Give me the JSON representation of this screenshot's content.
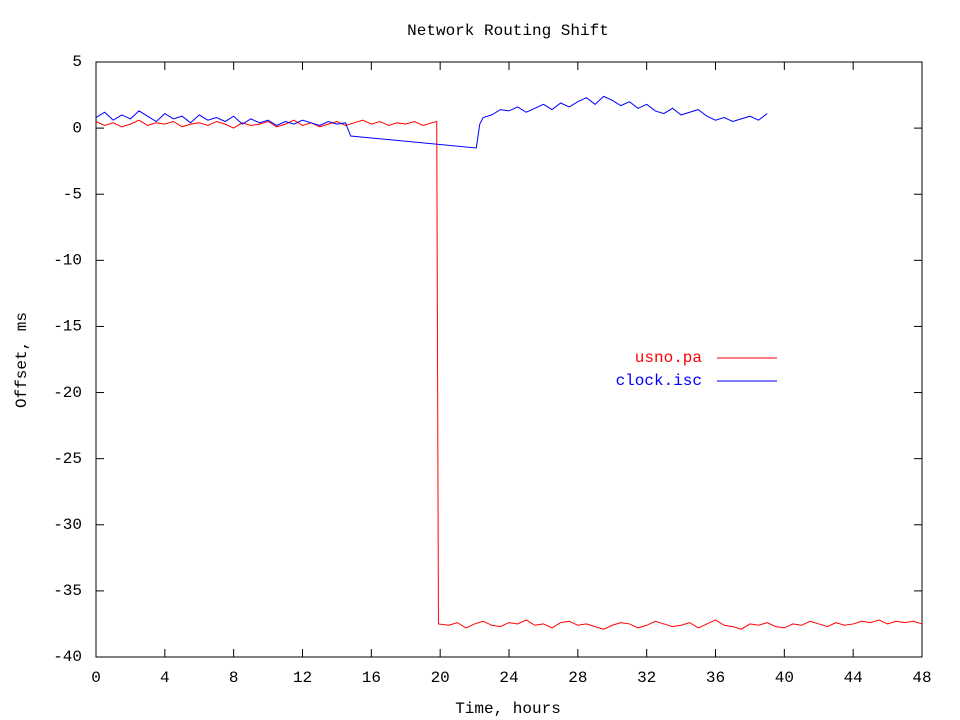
{
  "chart_data": {
    "type": "line",
    "title": "Network Routing Shift",
    "x_label": "Time, hours",
    "y_label": "Offset, ms",
    "xlim": [
      0,
      48
    ],
    "xticks": [
      0,
      4,
      8,
      12,
      16,
      20,
      24,
      28,
      32,
      36,
      40,
      44,
      48
    ],
    "ylim": [
      -40,
      5
    ],
    "yticks": [
      5,
      0,
      -5,
      -10,
      -15,
      -20,
      -25,
      -30,
      -35,
      -40
    ],
    "legend": "right",
    "grid": false,
    "series": [
      {
        "name": "usno.pa",
        "color": "#ff0000",
        "x": [
          0,
          0.5,
          1,
          1.5,
          2,
          2.5,
          3,
          3.5,
          4,
          4.5,
          5,
          5.5,
          6,
          6.5,
          7,
          7.5,
          8,
          8.5,
          9,
          9.5,
          10,
          10.5,
          11,
          11.5,
          12,
          12.5,
          13,
          13.5,
          14,
          14.5,
          15,
          15.5,
          16,
          16.5,
          17,
          17.5,
          18,
          18.5,
          19,
          19.5,
          19.8,
          19.9,
          20.5,
          21,
          21.5,
          22,
          22.5,
          23,
          23.5,
          24,
          24.5,
          25,
          25.5,
          26,
          26.5,
          27,
          27.5,
          28,
          28.5,
          29,
          29.5,
          30,
          30.5,
          31,
          31.5,
          32,
          32.5,
          33,
          33.5,
          34,
          34.5,
          35,
          35.5,
          36,
          36.5,
          37,
          37.5,
          38,
          38.5,
          39,
          39.5,
          40,
          40.5,
          41,
          41.5,
          42,
          42.5,
          43,
          43.5,
          44,
          44.5,
          45,
          45.5,
          46,
          46.5,
          47,
          47.5,
          48
        ],
        "values": [
          0.5,
          0.2,
          0.4,
          0.1,
          0.3,
          0.6,
          0.2,
          0.4,
          0.3,
          0.5,
          0.1,
          0.3,
          0.4,
          0.2,
          0.5,
          0.3,
          0.0,
          0.4,
          0.2,
          0.3,
          0.5,
          0.1,
          0.3,
          0.6,
          0.2,
          0.4,
          0.1,
          0.3,
          0.5,
          0.2,
          0.4,
          0.6,
          0.3,
          0.5,
          0.2,
          0.4,
          0.3,
          0.5,
          0.2,
          0.4,
          0.5,
          -37.5,
          -37.6,
          -37.4,
          -37.8,
          -37.5,
          -37.3,
          -37.6,
          -37.7,
          -37.4,
          -37.5,
          -37.2,
          -37.6,
          -37.5,
          -37.8,
          -37.4,
          -37.3,
          -37.6,
          -37.5,
          -37.7,
          -37.9,
          -37.6,
          -37.4,
          -37.5,
          -37.8,
          -37.6,
          -37.3,
          -37.5,
          -37.7,
          -37.6,
          -37.4,
          -37.8,
          -37.5,
          -37.2,
          -37.6,
          -37.7,
          -37.9,
          -37.5,
          -37.6,
          -37.4,
          -37.7,
          -37.8,
          -37.5,
          -37.6,
          -37.3,
          -37.5,
          -37.7,
          -37.4,
          -37.6,
          -37.5,
          -37.3,
          -37.4,
          -37.2,
          -37.5,
          -37.3,
          -37.4,
          -37.3,
          -37.5
        ]
      },
      {
        "name": "clock.isc",
        "color": "#0000ff",
        "x": [
          0,
          0.5,
          1,
          1.5,
          2,
          2.5,
          3,
          3.5,
          4,
          4.5,
          5,
          5.5,
          6,
          6.5,
          7,
          7.5,
          8,
          8.5,
          9,
          9.5,
          10,
          10.5,
          11,
          11.5,
          12,
          12.5,
          13,
          13.5,
          14,
          14.5,
          14.8,
          22.1,
          22.3,
          22.5,
          23,
          23.5,
          24,
          24.5,
          25,
          25.5,
          26,
          26.5,
          27,
          27.5,
          28,
          28.5,
          29,
          29.5,
          30,
          30.5,
          31,
          31.5,
          32,
          32.5,
          33,
          33.5,
          34,
          34.5,
          35,
          35.5,
          36,
          36.5,
          37,
          37.5,
          38,
          38.5,
          39
        ],
        "values": [
          0.8,
          1.2,
          0.6,
          1.0,
          0.7,
          1.3,
          0.9,
          0.5,
          1.1,
          0.7,
          0.9,
          0.4,
          1.0,
          0.6,
          0.8,
          0.5,
          0.9,
          0.3,
          0.7,
          0.4,
          0.6,
          0.2,
          0.5,
          0.3,
          0.6,
          0.4,
          0.2,
          0.5,
          0.3,
          0.4,
          -0.6,
          -1.5,
          0.3,
          0.8,
          1.0,
          1.4,
          1.3,
          1.6,
          1.2,
          1.5,
          1.8,
          1.4,
          1.9,
          1.6,
          2.0,
          2.3,
          1.8,
          2.4,
          2.1,
          1.7,
          2.0,
          1.5,
          1.8,
          1.3,
          1.1,
          1.5,
          1.0,
          1.2,
          1.4,
          0.9,
          0.6,
          0.8,
          0.5,
          0.7,
          0.9,
          0.6,
          1.1
        ]
      }
    ]
  }
}
